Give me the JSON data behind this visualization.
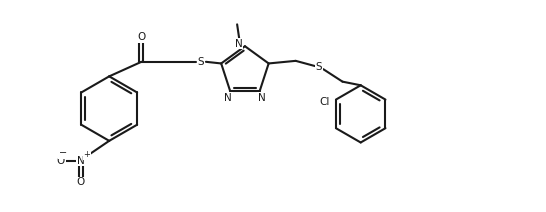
{
  "bg_color": "#ffffff",
  "line_color": "#1a1a1a",
  "line_width": 1.5,
  "figsize": [
    5.46,
    2.12
  ],
  "dpi": 100,
  "xlim": [
    0.0,
    10.5
  ],
  "ylim": [
    0.0,
    3.8
  ]
}
